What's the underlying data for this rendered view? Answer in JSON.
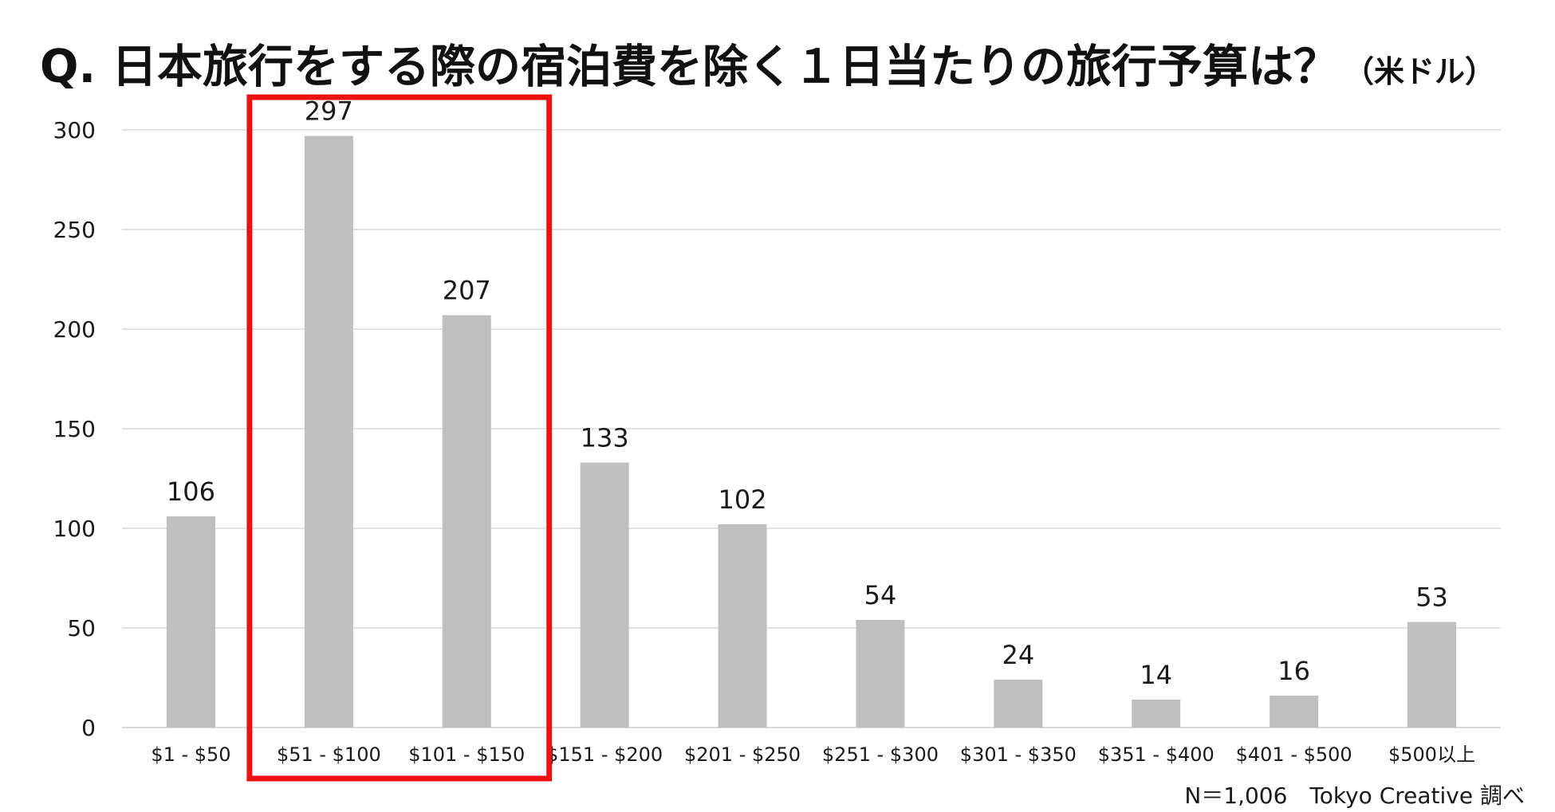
{
  "title": "Q. 日本旅行をする際の宿泊費を除く１日当たりの旅行予算は？",
  "title_unit": "（米ドル）",
  "footnote": "N＝1,006　Tokyo Creative 調べ",
  "colors": {
    "bar": "#bfbfbf",
    "grid": "#d9d9d9",
    "highlight": "#ee1111",
    "text": "#1a1a1a"
  },
  "chart_data": {
    "type": "bar",
    "categories": [
      "$1 - $50",
      "$51 - $100",
      "$101 - $150",
      "$151 - $200",
      "$201 - $250",
      "$251 - $300",
      "$301 - $350",
      "$351 - $400",
      "$401 - $500",
      "$500以上"
    ],
    "values": [
      106,
      297,
      207,
      133,
      102,
      54,
      24,
      14,
      16,
      53
    ],
    "ylim": [
      0,
      300
    ],
    "yticks": [
      0,
      50,
      100,
      150,
      200,
      250,
      300
    ],
    "grid": true,
    "data_labels": true,
    "highlight_categories": [
      "$51 - $100",
      "$101 - $150"
    ]
  }
}
